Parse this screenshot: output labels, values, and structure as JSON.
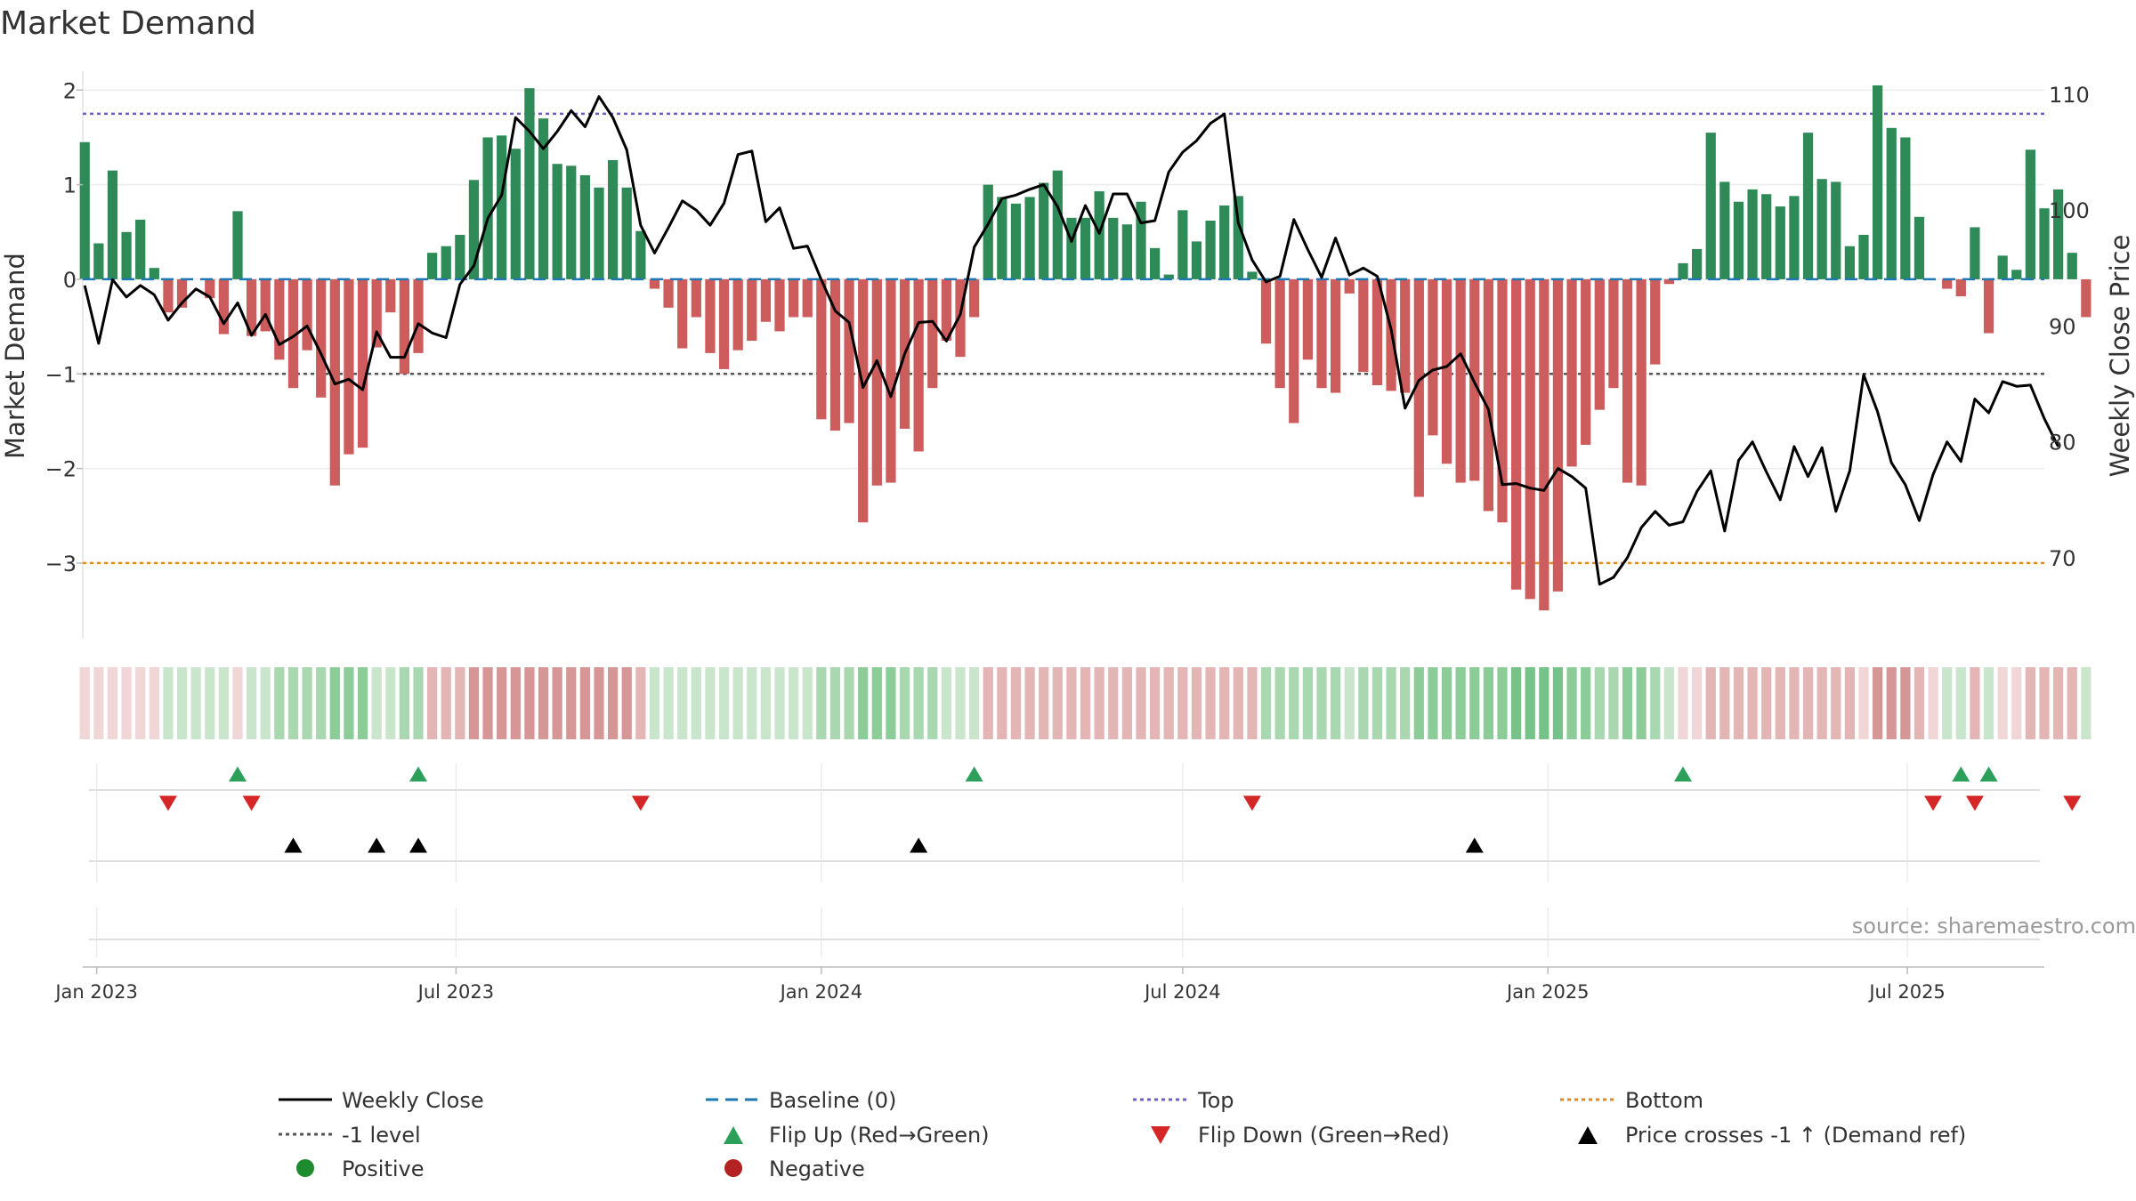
{
  "chart_data": {
    "type": "bar+line",
    "title": "Market Demand",
    "ylabel_left": "Market Demand",
    "ylabel_right": "Weekly Close Price",
    "source": "source: sharemaestro.com",
    "ylim_left": [
      -3.8,
      2.2
    ],
    "ylim_right": [
      63,
      112
    ],
    "yticks_left": [
      {
        "v": 2,
        "label": "2"
      },
      {
        "v": 1,
        "label": "1"
      },
      {
        "v": 0,
        "label": "0"
      },
      {
        "v": -1,
        "label": "−1"
      },
      {
        "v": -2,
        "label": "−2"
      },
      {
        "v": -3,
        "label": "−3"
      }
    ],
    "yticks_right": [
      {
        "v": 110,
        "label": "110"
      },
      {
        "v": 100,
        "label": "100"
      },
      {
        "v": 90,
        "label": "90"
      },
      {
        "v": 80,
        "label": "80"
      },
      {
        "v": 70,
        "label": "70"
      }
    ],
    "x_start": "2022-12-25",
    "x_end": "2025-09-08",
    "start_date": "2022-12-26",
    "week_days": 7,
    "xticks": [
      {
        "date": "2023-01-01",
        "label": "Jan 2023"
      },
      {
        "date": "2023-07-01",
        "label": "Jul 2023"
      },
      {
        "date": "2024-01-01",
        "label": "Jan 2024"
      },
      {
        "date": "2024-07-01",
        "label": "Jul 2024"
      },
      {
        "date": "2025-01-01",
        "label": "Jan 2025"
      },
      {
        "date": "2025-07-01",
        "label": "Jul 2025"
      }
    ],
    "reference_lines": {
      "top": 1.75,
      "bottom": -3.0,
      "minus_one": -1.0,
      "baseline": 0
    },
    "demand": [
      1.45,
      0.38,
      1.15,
      0.5,
      0.63,
      0.12,
      -0.35,
      -0.3,
      0.0,
      -0.2,
      -0.58,
      0.72,
      -0.6,
      -0.55,
      -0.85,
      -1.15,
      -0.75,
      -1.25,
      -2.18,
      -1.85,
      -1.78,
      -0.72,
      -0.35,
      -1.0,
      -0.78,
      0.28,
      0.35,
      0.47,
      1.05,
      1.5,
      1.52,
      1.38,
      2.02,
      1.7,
      1.22,
      1.2,
      1.1,
      0.97,
      1.26,
      0.97,
      0.51,
      -0.1,
      -0.3,
      -0.73,
      -0.4,
      -0.78,
      -0.95,
      -0.75,
      -0.65,
      -0.45,
      -0.55,
      -0.4,
      -0.4,
      -1.48,
      -1.6,
      -1.52,
      -2.57,
      -2.18,
      -2.15,
      -1.58,
      -1.82,
      -1.15,
      -0.65,
      -0.82,
      -0.4,
      1.0,
      0.87,
      0.8,
      0.87,
      1.02,
      1.15,
      0.65,
      0.65,
      0.93,
      0.65,
      0.58,
      0.82,
      0.33,
      0.05,
      0.73,
      0.4,
      0.62,
      0.78,
      0.88,
      0.08,
      -0.68,
      -1.15,
      -1.52,
      -0.85,
      -1.15,
      -1.2,
      -0.15,
      -0.98,
      -1.12,
      -1.18,
      -1.2,
      -2.3,
      -1.65,
      -1.95,
      -2.15,
      -2.13,
      -2.45,
      -2.57,
      -3.28,
      -3.38,
      -3.5,
      -3.3,
      -1.98,
      -1.75,
      -1.38,
      -1.15,
      -2.15,
      -2.18,
      -0.9,
      -0.05,
      0.17,
      0.32,
      1.55,
      1.03,
      0.82,
      0.95,
      0.9,
      0.77,
      0.88,
      1.55,
      1.06,
      1.03,
      0.35,
      0.47,
      2.05,
      1.6,
      1.5,
      0.66,
      0.0,
      -0.1,
      -0.18,
      0.55,
      -0.57,
      0.25,
      0.1,
      1.37,
      0.75,
      0.95,
      0.28,
      -0.4
    ],
    "weekly_close": [
      93.5,
      88.5,
      94.0,
      92.5,
      93.5,
      92.7,
      90.5,
      92.0,
      93.2,
      92.5,
      90.2,
      92.0,
      89.2,
      91.0,
      88.4,
      89.1,
      90.0,
      87.6,
      85.0,
      85.4,
      84.5,
      89.5,
      87.3,
      87.3,
      90.2,
      89.4,
      89.0,
      93.6,
      95.2,
      99.3,
      101.3,
      108.0,
      106.8,
      105.3,
      106.8,
      108.6,
      107.2,
      109.8,
      108.0,
      105.2,
      98.7,
      96.3,
      98.5,
      100.8,
      100.0,
      98.7,
      100.6,
      104.8,
      105.1,
      99.0,
      100.2,
      96.7,
      96.9,
      94.0,
      91.3,
      90.3,
      84.7,
      87.0,
      83.9,
      87.6,
      90.3,
      90.4,
      88.7,
      91.0,
      96.8,
      98.8,
      101.0,
      101.3,
      101.8,
      102.2,
      100.3,
      97.3,
      100.4,
      98.0,
      101.4,
      101.4,
      98.9,
      99.1,
      103.3,
      105.0,
      106.0,
      107.5,
      108.3,
      98.9,
      95.7,
      93.8,
      94.3,
      99.2,
      96.6,
      94.2,
      97.6,
      94.4,
      95.0,
      94.3,
      89.7,
      82.9,
      85.3,
      86.2,
      86.5,
      87.6,
      85.1,
      82.8,
      76.3,
      76.4,
      76.0,
      75.8,
      77.7,
      77.0,
      76.0,
      67.7,
      68.3,
      70.0,
      72.6,
      74.0,
      72.8,
      73.1,
      75.7,
      77.5,
      72.3,
      78.4,
      80.0,
      77.4,
      75.0,
      79.6,
      77.0,
      79.5,
      74.0,
      77.5,
      85.8,
      82.6,
      78.2,
      76.3,
      73.2,
      77.2,
      80.0,
      78.3,
      83.7,
      82.5,
      85.2,
      84.8,
      84.9,
      82.0,
      79.6
    ],
    "heat_strips": [
      4,
      4,
      4,
      4,
      4,
      4,
      5,
      5,
      5,
      5,
      5,
      4,
      5,
      5,
      6,
      6,
      6,
      6,
      7,
      7,
      7,
      5,
      5,
      6,
      6,
      3,
      3,
      3,
      2,
      2,
      2,
      2,
      2,
      2,
      2,
      2,
      2,
      2,
      2,
      2,
      3,
      5,
      5,
      5,
      5,
      5,
      5,
      5,
      5,
      5,
      5,
      5,
      5,
      6,
      6,
      6,
      7,
      7,
      7,
      6,
      6,
      6,
      5,
      5,
      5,
      3,
      3,
      3,
      3,
      3,
      3,
      3,
      3,
      3,
      3,
      3,
      3,
      3,
      3,
      3,
      3,
      3,
      3,
      3,
      3,
      6,
      6,
      6,
      6,
      6,
      6,
      5,
      6,
      6,
      6,
      6,
      7,
      7,
      7,
      7,
      7,
      7,
      7,
      8,
      8,
      8,
      8,
      7,
      7,
      6,
      6,
      7,
      7,
      6,
      5,
      4,
      4,
      3,
      3,
      3,
      3,
      3,
      3,
      3,
      3,
      3,
      3,
      3,
      4,
      2,
      2,
      2,
      3,
      4,
      5,
      5,
      3,
      5,
      4,
      4,
      3,
      3,
      3,
      3,
      5
    ],
    "flip_up_weeks": [
      11,
      24,
      64,
      115,
      135,
      137
    ],
    "flip_down_weeks": [
      6,
      12,
      40,
      84,
      133,
      136,
      143
    ],
    "price_cross_weeks": [
      15,
      21,
      24,
      60,
      100
    ],
    "legend": [
      {
        "key": "weekly-close",
        "label": "Weekly Close",
        "symbol": "solid-line",
        "color": "#000000"
      },
      {
        "key": "baseline",
        "label": "Baseline (0)",
        "symbol": "dashed-line",
        "color": "#1f77b4"
      },
      {
        "key": "top",
        "label": "Top",
        "symbol": "dotted-line",
        "color": "#6b5fc7"
      },
      {
        "key": "bottom",
        "label": "Bottom",
        "symbol": "dotted-line",
        "color": "#e8891c"
      },
      {
        "key": "minus-one",
        "label": "-1 level",
        "symbol": "dotted-line",
        "color": "#555555"
      },
      {
        "key": "flip-up",
        "label": "Flip Up (Red→Green)",
        "symbol": "triangle-up",
        "color": "#2ca05a"
      },
      {
        "key": "flip-down",
        "label": "Flip Down (Green→Red)",
        "symbol": "triangle-down",
        "color": "#d62728"
      },
      {
        "key": "price-cross",
        "label": "Price crosses -1 ↑ (Demand ref)",
        "symbol": "triangle-up",
        "color": "#000000"
      },
      {
        "key": "positive",
        "label": "Positive",
        "symbol": "circle",
        "color": "#1e8c2e"
      },
      {
        "key": "negative",
        "label": "Negative",
        "symbol": "circle",
        "color": "#b22222"
      }
    ]
  },
  "colors": {
    "positive_bar": "#2e8b57",
    "negative_bar": "#cd5c5c",
    "heat": [
      "#c26060",
      "#cc7a7a",
      "#d69696",
      "#e3b5b5",
      "#f0d6d6",
      "#c9e6cc",
      "#a9d7b0",
      "#8ccc98",
      "#76c389"
    ]
  }
}
